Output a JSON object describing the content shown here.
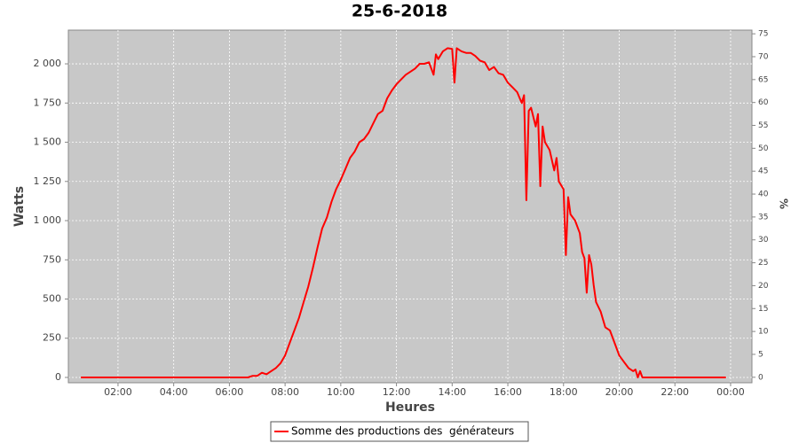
{
  "chart_data": {
    "type": "line",
    "title": "25-6-2018",
    "x_label": "Heures",
    "y_label": "Watts",
    "y2_label": "%",
    "x": [
      40,
      400,
      410,
      420,
      430,
      440,
      450,
      460,
      470,
      480,
      490,
      500,
      510,
      520,
      530,
      540,
      550,
      560,
      570,
      580,
      590,
      600,
      610,
      620,
      630,
      640,
      650,
      660,
      670,
      680,
      690,
      700,
      710,
      720,
      730,
      740,
      750,
      760,
      770,
      780,
      790,
      800,
      805,
      810,
      820,
      830,
      840,
      845,
      850,
      860,
      870,
      880,
      890,
      900,
      910,
      920,
      930,
      940,
      950,
      960,
      970,
      980,
      990,
      995,
      1000,
      1005,
      1010,
      1020,
      1025,
      1030,
      1035,
      1040,
      1050,
      1060,
      1065,
      1070,
      1080,
      1085,
      1090,
      1095,
      1105,
      1115,
      1120,
      1125,
      1130,
      1135,
      1140,
      1145,
      1150,
      1160,
      1170,
      1180,
      1190,
      1200,
      1210,
      1220,
      1230,
      1235,
      1240,
      1245,
      1250,
      1260,
      1430
    ],
    "series": [
      {
        "name": "Somme des productions des  générateurs",
        "color": "#ff0000",
        "values": [
          0,
          0,
          10,
          10,
          30,
          20,
          40,
          60,
          90,
          140,
          220,
          300,
          380,
          480,
          580,
          700,
          830,
          950,
          1020,
          1120,
          1200,
          1260,
          1330,
          1400,
          1440,
          1500,
          1520,
          1560,
          1620,
          1680,
          1700,
          1780,
          1830,
          1870,
          1900,
          1930,
          1950,
          1970,
          2000,
          2000,
          2010,
          1930,
          2060,
          2030,
          2080,
          2100,
          2095,
          1880,
          2100,
          2080,
          2070,
          2070,
          2050,
          2020,
          2010,
          1960,
          1980,
          1940,
          1930,
          1880,
          1850,
          1820,
          1750,
          1800,
          1130,
          1700,
          1720,
          1600,
          1680,
          1220,
          1600,
          1500,
          1450,
          1320,
          1400,
          1250,
          1200,
          780,
          1150,
          1040,
          1000,
          920,
          800,
          760,
          540,
          780,
          720,
          590,
          480,
          420,
          320,
          300,
          220,
          140,
          100,
          60,
          40,
          50,
          0,
          40,
          0,
          0,
          0
        ]
      }
    ],
    "xlim": [
      13,
      1486
    ],
    "xticks": [
      {
        "value": 120,
        "label": "02:00"
      },
      {
        "value": 240,
        "label": "04:00"
      },
      {
        "value": 360,
        "label": "06:00"
      },
      {
        "value": 480,
        "label": "08:00"
      },
      {
        "value": 600,
        "label": "10:00"
      },
      {
        "value": 720,
        "label": "12:00"
      },
      {
        "value": 840,
        "label": "14:00"
      },
      {
        "value": 960,
        "label": "16:00"
      },
      {
        "value": 1080,
        "label": "18:00"
      },
      {
        "value": 1200,
        "label": "20:00"
      },
      {
        "value": 1320,
        "label": "22:00"
      },
      {
        "value": 1440,
        "label": "00:00"
      }
    ],
    "ylim": [
      -34,
      2215
    ],
    "yticks": [
      0,
      250,
      500,
      750,
      {
        "value": 1000,
        "label": "1 000"
      },
      {
        "value": 1250,
        "label": "1 250"
      },
      {
        "value": 1500,
        "label": "1 500"
      },
      {
        "value": 1750,
        "label": "1 750"
      },
      {
        "value": 2000,
        "label": "2 000"
      }
    ],
    "y2lim": [
      -1.2,
      75.8
    ],
    "y2ticks": [
      0,
      5,
      10,
      15,
      20,
      25,
      30,
      35,
      40,
      45,
      50,
      55,
      60,
      65,
      70,
      75
    ],
    "grid": true,
    "legend": "bottom"
  }
}
